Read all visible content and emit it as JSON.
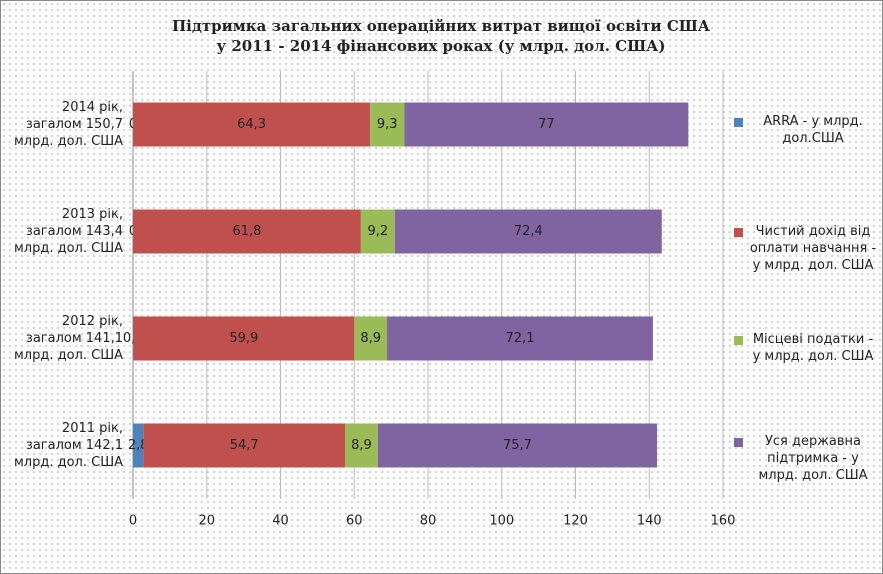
{
  "chart_data": {
    "type": "stacked-bar-horizontal",
    "title": "Підтримка загальних операційних витрат вищої освіти США",
    "subtitle": "у 2011 - 2014 фінансових роках (у млрд. дол. США)",
    "categories": [
      "2014 рік, загалом 150,7 млрд. дол. США",
      "2013 рік, загалом 143,4 млрд. дол. США",
      "2012 рік, загалом 141,1 млрд. дол. США",
      "2011 рік, загалом 142,1 млрд. дол. США"
    ],
    "series": [
      {
        "name": "ARRA - у млрд. дол.США",
        "color": "#4f81bd",
        "values": [
          0,
          0,
          0.1,
          2.8
        ],
        "value_labels": [
          "0",
          "0",
          "0,1",
          "2,8"
        ]
      },
      {
        "name": "Чистий дохід від оплати навчання - у млрд. дол. США",
        "color": "#c0504d",
        "values": [
          64.3,
          61.8,
          59.9,
          54.7
        ],
        "value_labels": [
          "64,3",
          "61,8",
          "59,9",
          "54,7"
        ]
      },
      {
        "name": "Місцеві податки - у млрд. дол. США",
        "color": "#9bbb59",
        "values": [
          9.3,
          9.2,
          8.9,
          8.9
        ],
        "value_labels": [
          "9,3",
          "9,2",
          "8,9",
          "8,9"
        ]
      },
      {
        "name": "Уся державна підтримка - у млрд. дол. США",
        "color": "#8064a2",
        "values": [
          77,
          72.4,
          72.1,
          75.7
        ],
        "value_labels": [
          "77",
          "72,4",
          "72,1",
          "75,7"
        ]
      }
    ],
    "xlim": [
      0,
      160
    ],
    "xticks": [
      0,
      20,
      40,
      60,
      80,
      100,
      120,
      140,
      160
    ],
    "grid": true,
    "legend": "right"
  }
}
